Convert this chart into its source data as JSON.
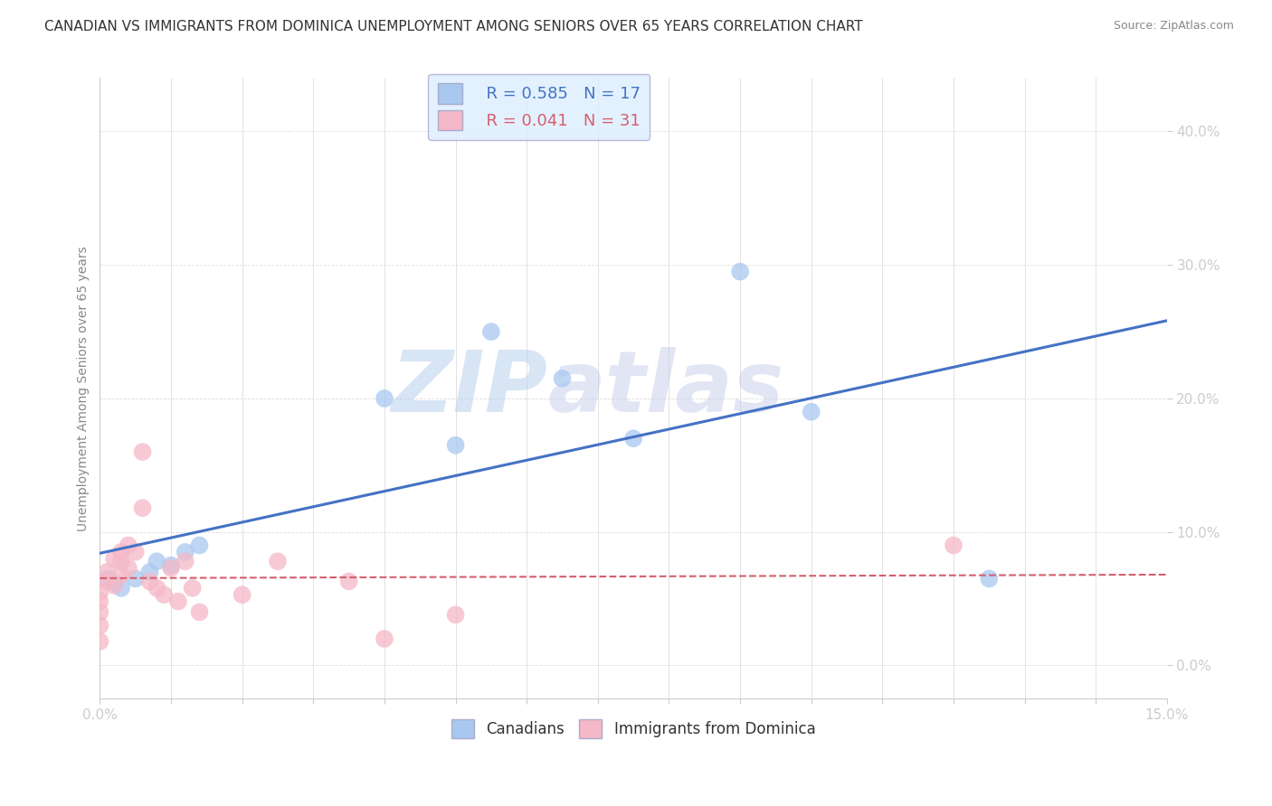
{
  "title": "CANADIAN VS IMMIGRANTS FROM DOMINICA UNEMPLOYMENT AMONG SENIORS OVER 65 YEARS CORRELATION CHART",
  "source": "Source: ZipAtlas.com",
  "ylabel": "Unemployment Among Seniors over 65 years",
  "xlim": [
    0.0,
    0.15
  ],
  "ylim": [
    -0.025,
    0.44
  ],
  "yticks": [
    0.0,
    0.1,
    0.2,
    0.3,
    0.4
  ],
  "ytick_labels": [
    "0.0%",
    "10.0%",
    "20.0%",
    "30.0%",
    "40.0%"
  ],
  "canadian_R": 0.585,
  "canadian_N": 17,
  "dominica_R": 0.041,
  "dominica_N": 31,
  "canadian_color": "#a8c8f0",
  "dominica_color": "#f5b8c8",
  "canadian_line_color": "#4472c4",
  "dominica_line_color": "#d45f6e",
  "legend_box_color": "#ddeeff",
  "watermark": "ZIPatlas",
  "canadian_x": [
    0.001,
    0.002,
    0.003,
    0.005,
    0.007,
    0.008,
    0.01,
    0.012,
    0.014,
    0.04,
    0.05,
    0.055,
    0.065,
    0.075,
    0.09,
    0.1,
    0.125
  ],
  "canadian_y": [
    0.065,
    0.062,
    0.058,
    0.065,
    0.07,
    0.078,
    0.075,
    0.085,
    0.09,
    0.2,
    0.165,
    0.25,
    0.215,
    0.17,
    0.295,
    0.19,
    0.065
  ],
  "dominica_x": [
    0.0,
    0.0,
    0.0,
    0.0,
    0.0,
    0.001,
    0.001,
    0.002,
    0.002,
    0.003,
    0.003,
    0.003,
    0.004,
    0.004,
    0.005,
    0.006,
    0.006,
    0.007,
    0.008,
    0.009,
    0.01,
    0.011,
    0.012,
    0.013,
    0.014,
    0.02,
    0.025,
    0.035,
    0.04,
    0.05,
    0.12
  ],
  "dominica_y": [
    0.055,
    0.048,
    0.04,
    0.03,
    0.018,
    0.07,
    0.063,
    0.08,
    0.06,
    0.085,
    0.078,
    0.068,
    0.09,
    0.073,
    0.085,
    0.16,
    0.118,
    0.063,
    0.058,
    0.053,
    0.073,
    0.048,
    0.078,
    0.058,
    0.04,
    0.053,
    0.078,
    0.063,
    0.02,
    0.038,
    0.09
  ],
  "title_fontsize": 11,
  "label_fontsize": 10,
  "tick_fontsize": 11,
  "marker_size": 200
}
